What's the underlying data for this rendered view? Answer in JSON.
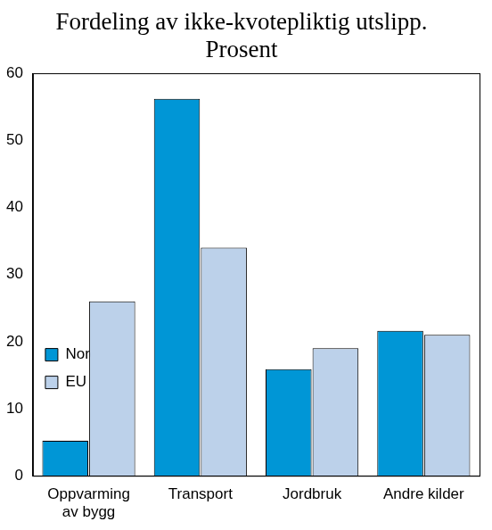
{
  "chart_data": {
    "type": "bar",
    "title": [
      "Fordeling av ikke-kvotepliktig utslipp.",
      "Prosent"
    ],
    "categories": [
      "Oppvarming av bygg",
      "Transport",
      "Jordbruk",
      "Andre kilder"
    ],
    "series": [
      {
        "name": "Norge",
        "color": "#0096d6",
        "values": [
          5.2,
          56.2,
          15.9,
          21.6
        ]
      },
      {
        "name": "EU",
        "color": "#bcd1ea",
        "values": [
          26,
          34,
          19,
          21
        ]
      }
    ],
    "ylim": [
      0,
      60
    ],
    "yticks": [
      0,
      10,
      20,
      30,
      40,
      50,
      60
    ],
    "grid": false,
    "legend": "upper right"
  }
}
